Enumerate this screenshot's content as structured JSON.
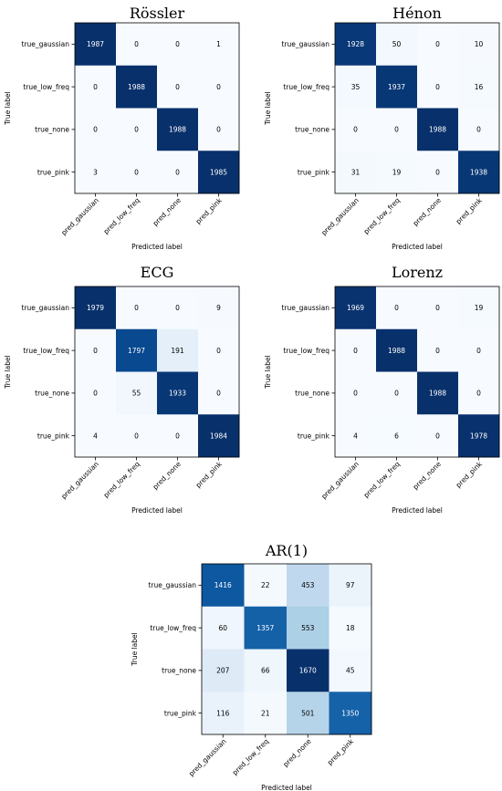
{
  "chart_data": [
    {
      "type": "heatmap",
      "title": "Rössler",
      "xlabel": "Predicted label",
      "ylabel": "True label",
      "x_categories": [
        "pred_gaussian",
        "pred_low_freq",
        "pred_none",
        "pred_pink"
      ],
      "y_categories": [
        "true_gaussian",
        "true_low_freq",
        "true_none",
        "true_pink"
      ],
      "values": [
        [
          1987,
          0,
          0,
          1
        ],
        [
          0,
          1988,
          0,
          0
        ],
        [
          0,
          0,
          1988,
          0
        ],
        [
          3,
          0,
          0,
          1985
        ]
      ],
      "colormap": "Blues"
    },
    {
      "type": "heatmap",
      "title": "Hénon",
      "xlabel": "Predicted label",
      "ylabel": "True label",
      "x_categories": [
        "pred_gaussian",
        "pred_low_freq",
        "pred_none",
        "pred_pink"
      ],
      "y_categories": [
        "true_gaussian",
        "true_low_freq",
        "true_none",
        "true_pink"
      ],
      "values": [
        [
          1928,
          50,
          0,
          10
        ],
        [
          35,
          1937,
          0,
          16
        ],
        [
          0,
          0,
          1988,
          0
        ],
        [
          31,
          19,
          0,
          1938
        ]
      ],
      "colormap": "Blues"
    },
    {
      "type": "heatmap",
      "title": "ECG",
      "xlabel": "Predicted label",
      "ylabel": "True label",
      "x_categories": [
        "pred_gaussian",
        "pred_low_freq",
        "pred_none",
        "pred_pink"
      ],
      "y_categories": [
        "true_gaussian",
        "true_low_freq",
        "true_none",
        "true_pink"
      ],
      "values": [
        [
          1979,
          0,
          0,
          9
        ],
        [
          0,
          1797,
          191,
          0
        ],
        [
          0,
          55,
          1933,
          0
        ],
        [
          4,
          0,
          0,
          1984
        ]
      ],
      "colormap": "Blues"
    },
    {
      "type": "heatmap",
      "title": "Lorenz",
      "xlabel": "Predicted label",
      "ylabel": "True label",
      "x_categories": [
        "pred_gaussian",
        "pred_low_freq",
        "pred_none",
        "pred_pink"
      ],
      "y_categories": [
        "true_gaussian",
        "true_low_freq",
        "true_none",
        "true_pink"
      ],
      "values": [
        [
          1969,
          0,
          0,
          19
        ],
        [
          0,
          1988,
          0,
          0
        ],
        [
          0,
          0,
          1988,
          0
        ],
        [
          4,
          6,
          0,
          1978
        ]
      ],
      "colormap": "Blues"
    },
    {
      "type": "heatmap",
      "title": "AR(1)",
      "xlabel": "Predicted label",
      "ylabel": "True label",
      "x_categories": [
        "pred_gaussian",
        "pred_low_freq",
        "pred_none",
        "pred_pink"
      ],
      "y_categories": [
        "true_gaussian",
        "true_low_freq",
        "true_none",
        "true_pink"
      ],
      "values": [
        [
          1416,
          22,
          453,
          97
        ],
        [
          60,
          1357,
          553,
          18
        ],
        [
          207,
          66,
          1670,
          45
        ],
        [
          116,
          21,
          501,
          1350
        ]
      ],
      "colormap": "Blues"
    }
  ]
}
